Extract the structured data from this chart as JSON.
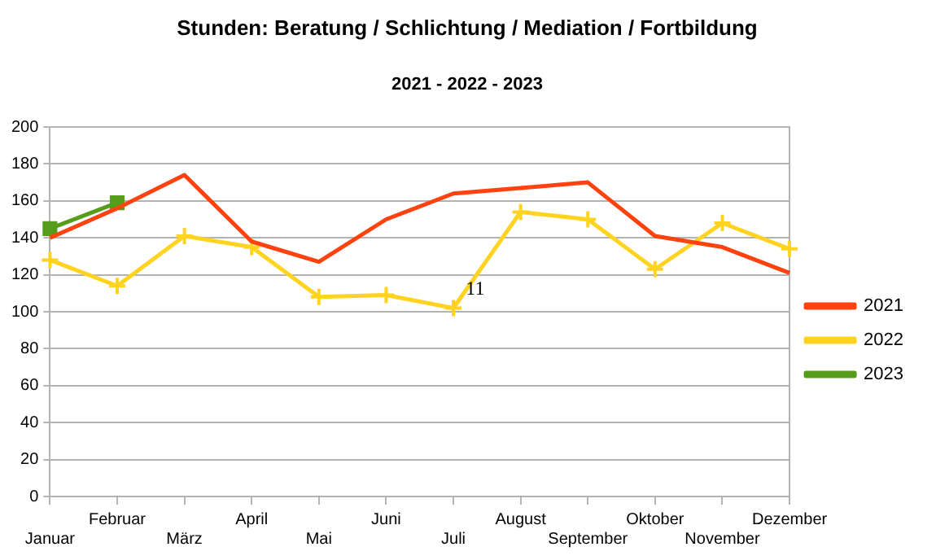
{
  "chart_data": {
    "type": "line",
    "title": "Stunden: Beratung / Schlichtung / Mediation / Fortbildung",
    "subtitle": "2021 - 2022 - 2023",
    "categories": [
      "Januar",
      "Februar",
      "März",
      "April",
      "Mai",
      "Juni",
      "Juli",
      "August",
      "September",
      "Oktober",
      "November",
      "Dezember"
    ],
    "series": [
      {
        "name": "2021",
        "color": "#ff420e",
        "marker": "none",
        "values": [
          140,
          156,
          174,
          138,
          127,
          150,
          164,
          167,
          170,
          141,
          135,
          121
        ]
      },
      {
        "name": "2022",
        "color": "#ffd320",
        "marker": "cross",
        "values": [
          128,
          114,
          141,
          135,
          108,
          109,
          102,
          154,
          150,
          123,
          148,
          134
        ]
      },
      {
        "name": "2023",
        "color": "#579d1c",
        "marker": "square",
        "values": [
          145,
          159,
          null,
          null,
          null,
          null,
          null,
          null,
          null,
          null,
          null,
          null
        ]
      }
    ],
    "ylim": [
      0,
      200
    ],
    "yticks": [
      0,
      20,
      40,
      60,
      80,
      100,
      120,
      140,
      160,
      180,
      200
    ],
    "grid": "y",
    "legend": "right",
    "line_style": "solid",
    "annotations": [
      "11"
    ]
  }
}
